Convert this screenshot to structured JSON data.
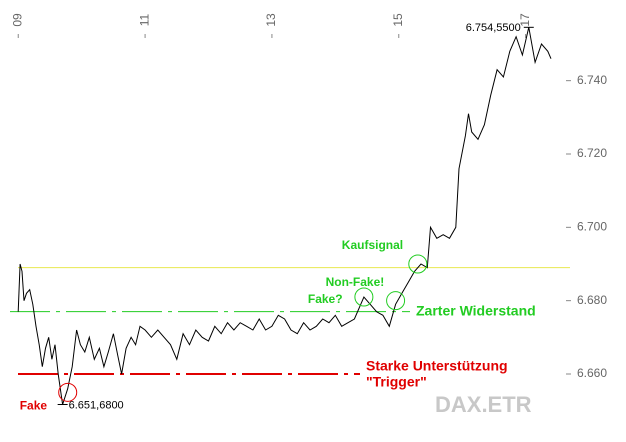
{
  "chart_data": {
    "type": "line",
    "x": [
      9.0,
      9.03,
      9.06,
      9.09,
      9.13,
      9.18,
      9.23,
      9.28,
      9.33,
      9.38,
      9.43,
      9.48,
      9.53,
      9.58,
      9.63,
      9.7,
      9.78,
      9.85,
      9.92,
      9.98,
      10.05,
      10.12,
      10.2,
      10.28,
      10.35,
      10.42,
      10.5,
      10.57,
      10.63,
      10.7,
      10.78,
      10.85,
      10.92,
      11.0,
      11.1,
      11.2,
      11.3,
      11.4,
      11.5,
      11.6,
      11.7,
      11.8,
      11.9,
      12.0,
      12.1,
      12.2,
      12.3,
      12.4,
      12.5,
      12.6,
      12.7,
      12.8,
      12.9,
      13.0,
      13.1,
      13.2,
      13.3,
      13.4,
      13.5,
      13.6,
      13.7,
      13.8,
      13.9,
      14.0,
      14.1,
      14.2,
      14.3,
      14.45,
      14.55,
      14.65,
      14.75,
      14.85,
      14.95,
      15.05,
      15.15,
      15.25,
      15.35,
      15.45,
      15.5,
      15.6,
      15.7,
      15.8,
      15.9,
      15.95,
      16.05,
      16.1,
      16.15,
      16.25,
      16.35,
      16.45,
      16.55,
      16.65,
      16.75,
      16.85,
      16.95,
      17.05,
      17.15,
      17.25,
      17.35,
      17.4
    ],
    "series": [
      {
        "color": "#000000",
        "values": [
          6677,
          6690,
          6688,
          6680,
          6682,
          6683,
          6679,
          6673,
          6668,
          6662,
          6667,
          6670,
          6664,
          6668,
          6660,
          6651.68,
          6656,
          6662,
          6672,
          6668,
          6666,
          6670,
          6664,
          6667,
          6662,
          6666,
          6671,
          6665,
          6660,
          6667,
          6670,
          6668,
          6673,
          6672,
          6670,
          6672,
          6670,
          6668,
          6664,
          6671,
          6668,
          6672,
          6670,
          6669,
          6673,
          6671,
          6674,
          6672,
          6674,
          6673,
          6672,
          6675,
          6672,
          6673,
          6676,
          6675,
          6672,
          6671,
          6674,
          6672,
          6673,
          6675,
          6674,
          6676,
          6673,
          6674,
          6675,
          6681,
          6679,
          6677,
          6676,
          6673,
          6679,
          6682,
          6685,
          6688,
          6690,
          6689,
          6700,
          6697,
          6698,
          6697,
          6700,
          6716,
          6725,
          6731,
          6726,
          6724,
          6728,
          6736,
          6743,
          6741,
          6748,
          6752,
          6747,
          6754.55,
          6745,
          6750,
          6748,
          6746
        ]
      }
    ],
    "xlim": [
      8.87,
      17.7
    ],
    "ylim": [
      6642,
      6762
    ],
    "xticks": [
      {
        "value": 9,
        "label": "09"
      },
      11,
      13,
      15,
      17
    ],
    "yticks": [
      {
        "value": 6660,
        "label": "6.660"
      },
      {
        "value": 6680,
        "label": "6.680"
      },
      {
        "value": 6700,
        "label": "6.700"
      },
      {
        "value": 6720,
        "label": "6.720"
      },
      {
        "value": 6740,
        "label": "6.740"
      }
    ],
    "extremes": [
      {
        "x": 17.05,
        "value": 6754.55,
        "label": "6.754,5500"
      },
      {
        "x": 9.7,
        "value": 6651.68,
        "label": "6.651,6800"
      }
    ],
    "reference_lines": [
      {
        "value": 6689,
        "color": "#e8e850",
        "style": "solid"
      },
      {
        "value": 6677,
        "color": "#22cc22",
        "style": "dashdot",
        "label": "Zarter Widerstand"
      },
      {
        "value": 6660,
        "color": "#e00000",
        "style": "dashdot",
        "label": "Starke Unterstützung",
        "sublabel": "\"Trigger\""
      }
    ],
    "annotations": [
      {
        "text": "Fake",
        "x": 9.78,
        "y": 6655,
        "color": "#e00000"
      },
      {
        "text": "Fake?",
        "x": 14.45,
        "y": 6681,
        "color": "#22cc22"
      },
      {
        "text": "Non-Fake!",
        "x": 14.95,
        "y": 6680,
        "color": "#22cc22"
      },
      {
        "text": "Kaufsignal",
        "x": 15.3,
        "y": 6690,
        "color": "#22cc22"
      }
    ],
    "watermark": "DAX.ETR"
  }
}
